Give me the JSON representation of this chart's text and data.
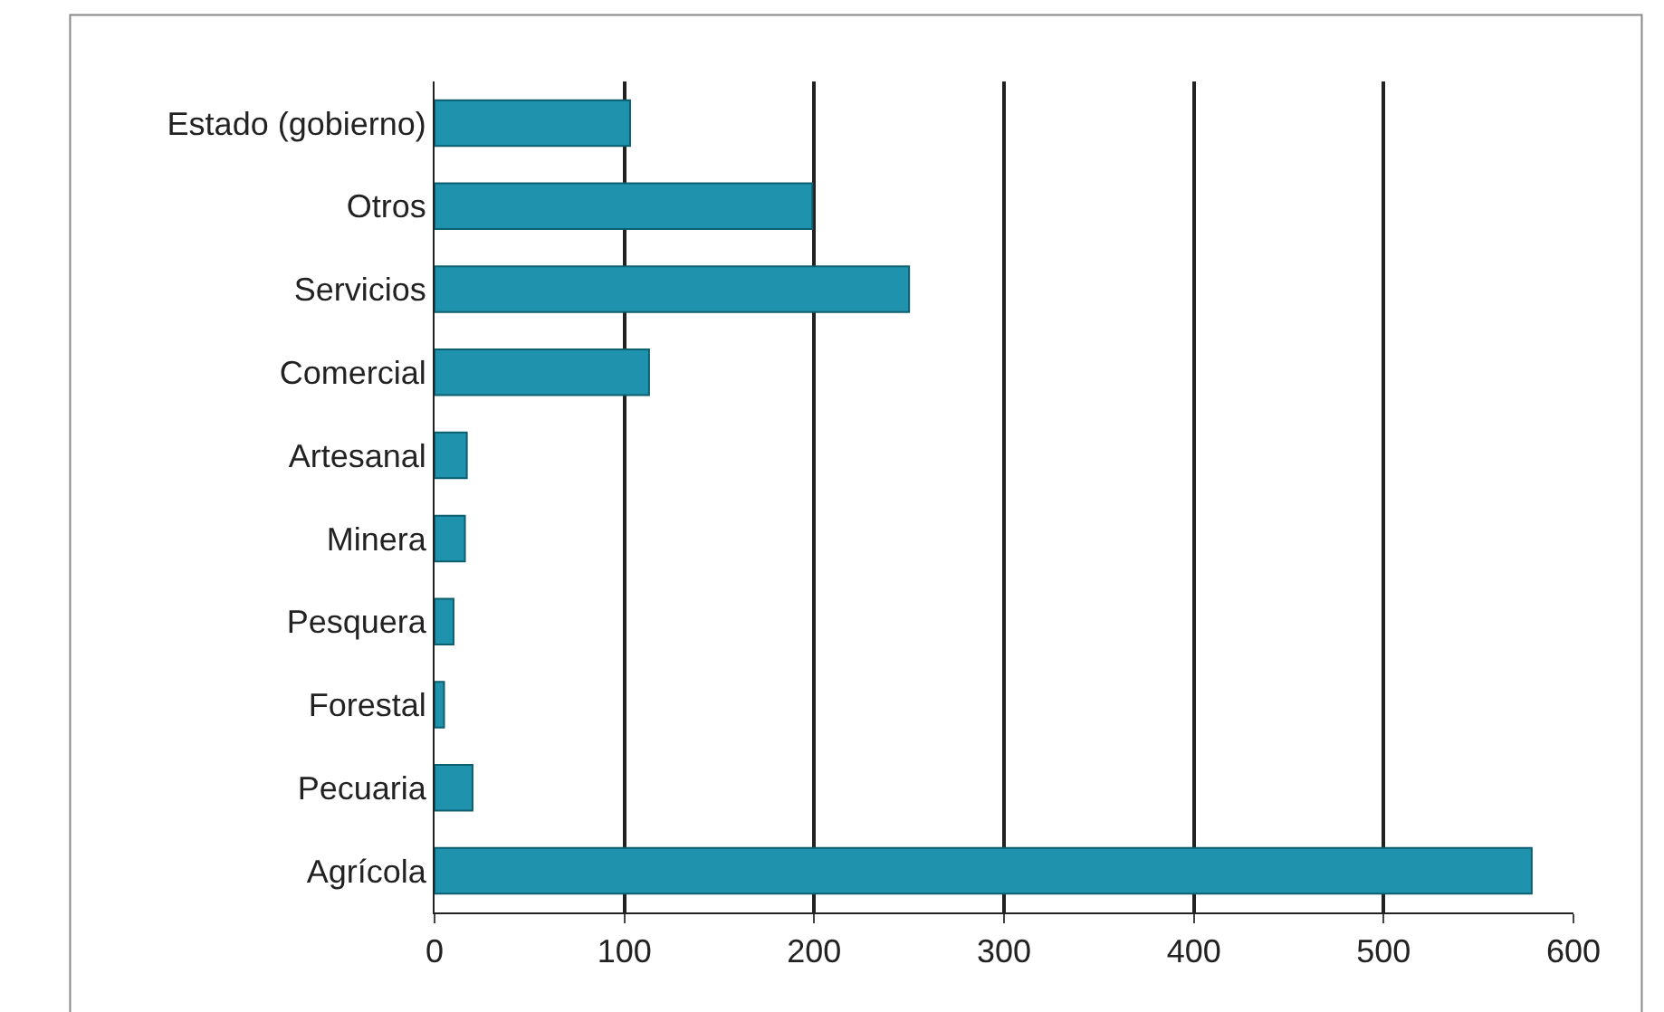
{
  "chart_data": {
    "type": "bar",
    "orientation": "horizontal",
    "categories": [
      "Estado (gobierno)",
      "Otros",
      "Servicios",
      "Comercial",
      "Artesanal",
      "Minera",
      "Pesquera",
      "Forestal",
      "Pecuaria",
      "Agrícola"
    ],
    "values": [
      103,
      199,
      250,
      113,
      17,
      16,
      10,
      5,
      20,
      578
    ],
    "color": "#1f93ad",
    "xlim": [
      0,
      600
    ],
    "xticks": [
      0,
      100,
      200,
      300,
      400,
      500,
      600
    ],
    "grid": "x",
    "legend": false
  }
}
